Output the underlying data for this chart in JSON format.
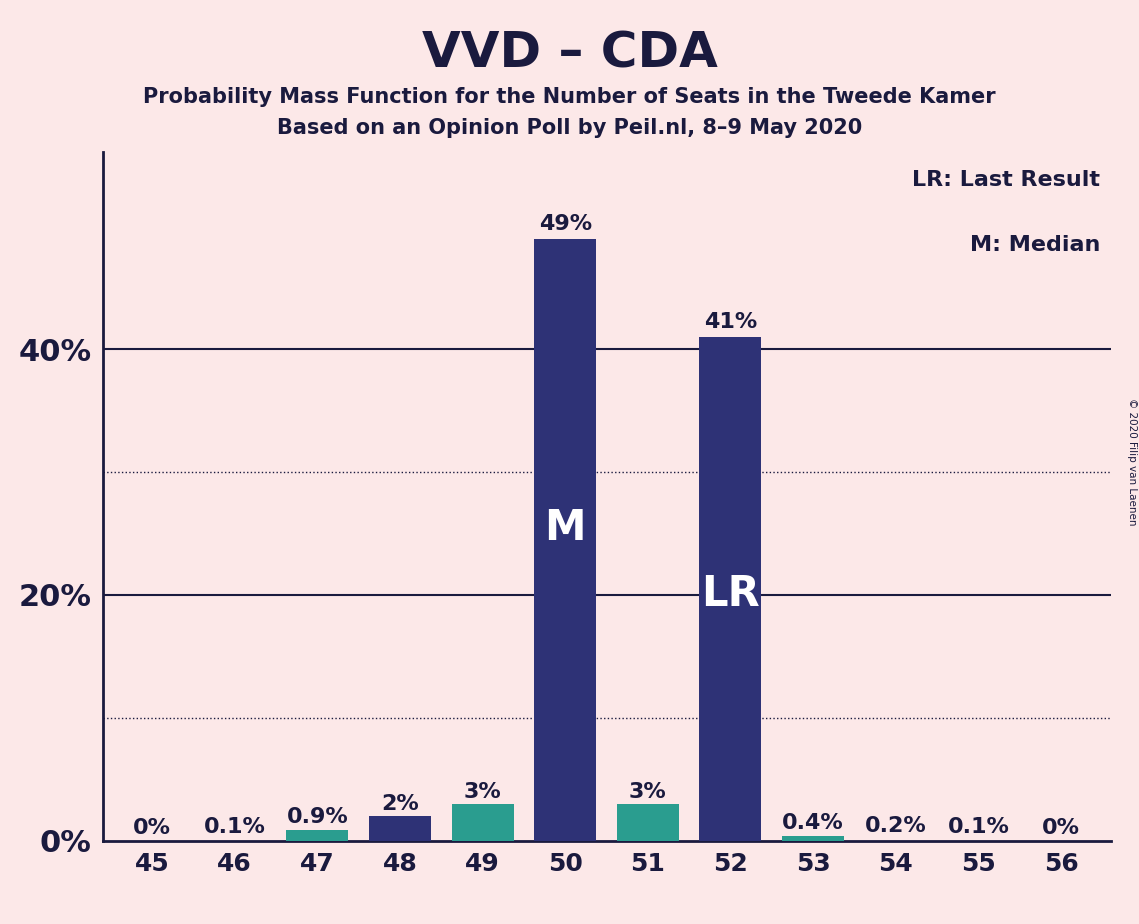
{
  "title": "VVD – CDA",
  "subtitle1": "Probability Mass Function for the Number of Seats in the Tweede Kamer",
  "subtitle2": "Based on an Opinion Poll by Peil.nl, 8–9 May 2020",
  "copyright": "© 2020 Filip van Laenen",
  "legend_lr": "LR: Last Result",
  "legend_m": "M: Median",
  "seats": [
    45,
    46,
    47,
    48,
    49,
    50,
    51,
    52,
    53,
    54,
    55,
    56
  ],
  "probabilities": [
    0.0,
    0.001,
    0.009,
    0.02,
    0.03,
    0.49,
    0.03,
    0.41,
    0.004,
    0.002,
    0.001,
    0.0
  ],
  "bar_labels": [
    "0%",
    "0.1%",
    "0.9%",
    "2%",
    "3%",
    "49%",
    "3%",
    "41%",
    "0.4%",
    "0.2%",
    "0.1%",
    "0%"
  ],
  "bar_colors_navy": "#2e3276",
  "bar_colors_teal": "#2a9d8f",
  "color_map": {
    "45": "none",
    "46": "none",
    "47": "teal",
    "48": "navy",
    "49": "teal",
    "50": "navy",
    "51": "teal",
    "52": "navy",
    "53": "teal",
    "54": "none",
    "55": "none",
    "56": "none"
  },
  "median_seat": 50,
  "lr_seat": 52,
  "background_color": "#fce8e8",
  "text_color": "#1a1a3e",
  "title_fontsize": 36,
  "subtitle_fontsize": 15,
  "label_fontsize": 16,
  "tick_fontsize": 18,
  "inner_label_fontsize": 30,
  "ytick_values": [
    0.0,
    0.2,
    0.4
  ],
  "ytick_labels": [
    "0%",
    "20%",
    "40%"
  ],
  "solid_grid_values": [
    0.2,
    0.4
  ],
  "dotted_grid_values": [
    0.1,
    0.3
  ],
  "ymax": 0.56,
  "xlim": [
    44.4,
    56.6
  ],
  "bar_width": 0.75
}
